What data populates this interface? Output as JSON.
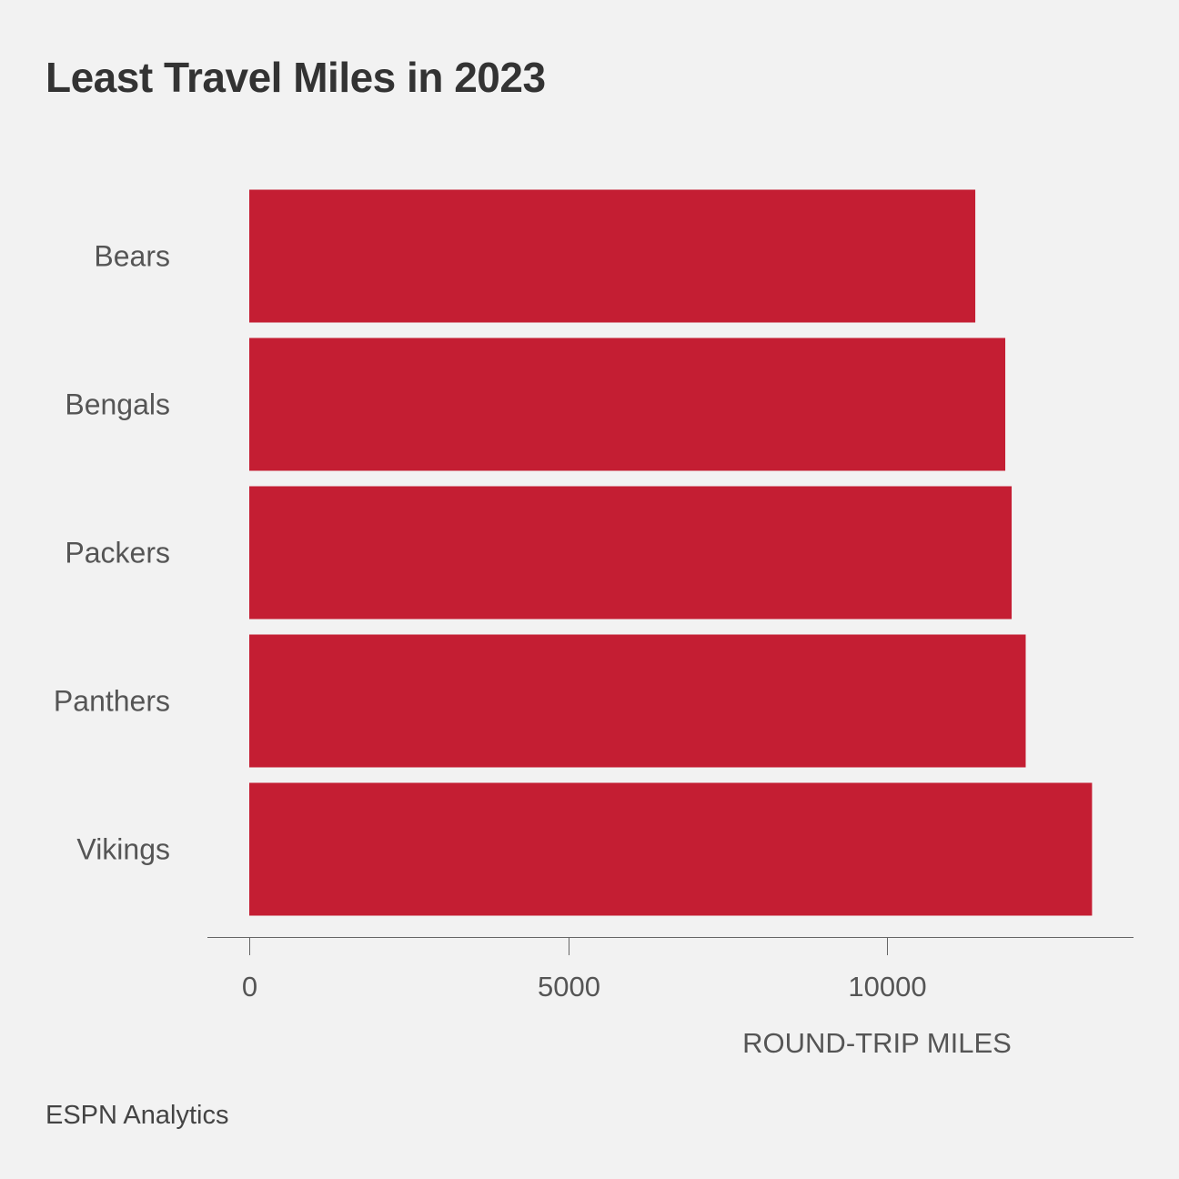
{
  "chart_data": {
    "type": "bar",
    "orientation": "horizontal",
    "title": "Least Travel Miles in 2023",
    "xlabel": "ROUND-TRIP MILES",
    "ylabel": "",
    "categories": [
      "Bears",
      "Bengals",
      "Packers",
      "Panthers",
      "Vikings"
    ],
    "values": [
      11380,
      11850,
      11950,
      12170,
      13210
    ],
    "xlim": [
      0,
      13860
    ],
    "xticks": [
      0,
      5000,
      10000
    ],
    "bar_color": "#c41e33",
    "grid": false,
    "legend": "none"
  },
  "footer": {
    "source": "ESPN Analytics"
  }
}
